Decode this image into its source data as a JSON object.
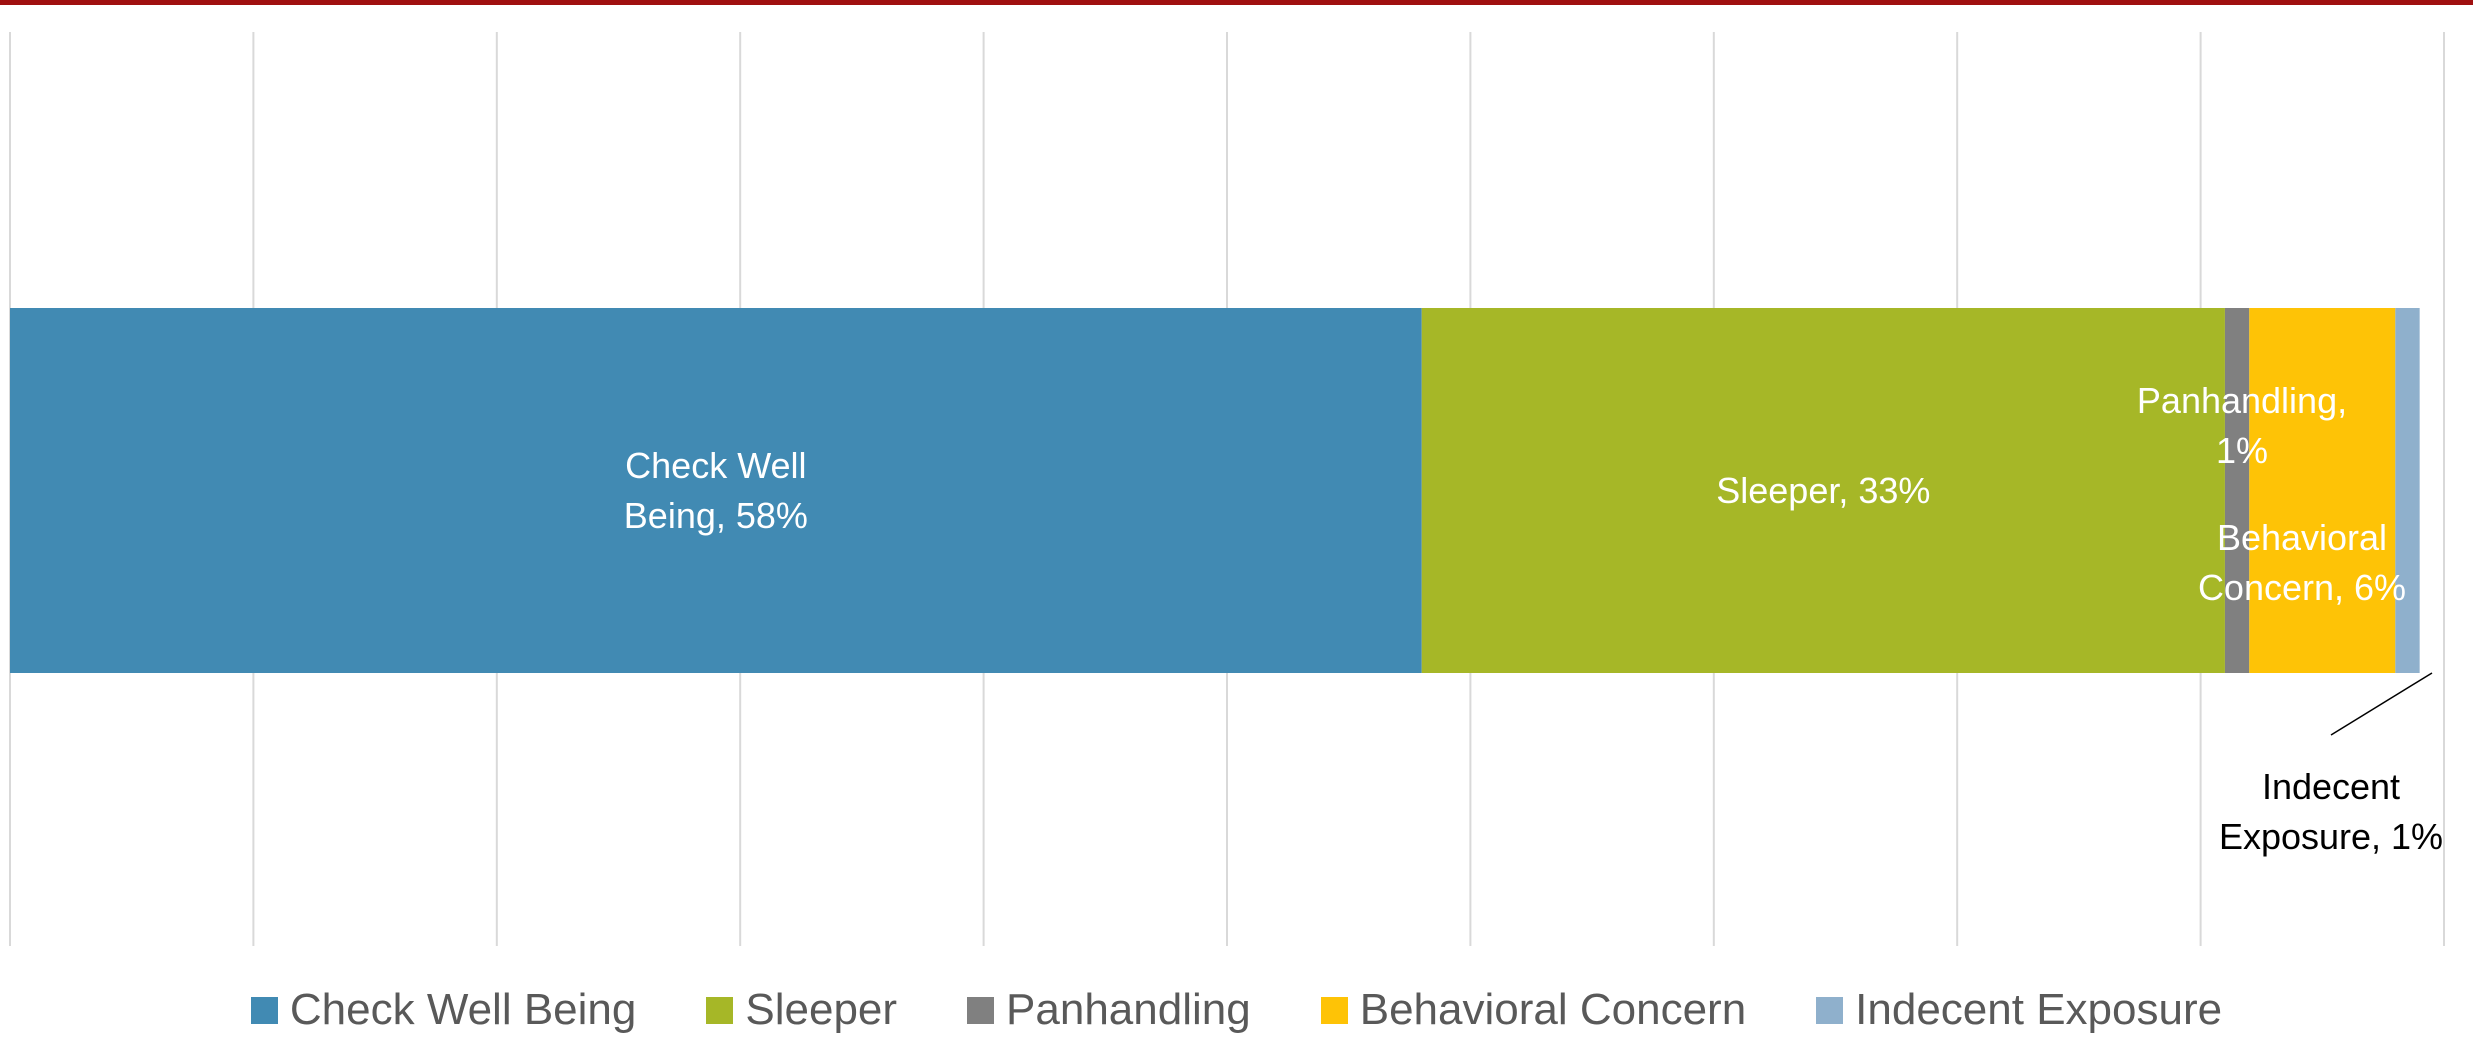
{
  "chart_data": {
    "type": "stacked-bar-horizontal",
    "categories": [
      null
    ],
    "series": [
      {
        "name": "Check Well Being",
        "color": "#418ab3",
        "values": [
          58
        ],
        "value_labels": [
          "Check Well Being, 58%"
        ]
      },
      {
        "name": "Sleeper",
        "color": "#a6b727",
        "values": [
          33
        ],
        "value_labels": [
          "Sleeper, 33%"
        ]
      },
      {
        "name": "Panhandling",
        "color": "#808080",
        "values": [
          1
        ],
        "value_labels": [
          "Panhandling, 1%"
        ]
      },
      {
        "name": "Behavioral Concern",
        "color": "#fec306",
        "values": [
          6
        ],
        "value_labels": [
          "Behavioral Concern, 6%"
        ]
      },
      {
        "name": "Indecent Exposure",
        "color": "#8fb0cc",
        "values": [
          1
        ],
        "value_labels": [
          "Indecent Exposure, 1%"
        ]
      }
    ],
    "xlim": [
      0,
      100
    ],
    "xticks": [
      0,
      10,
      20,
      30,
      40,
      50,
      60,
      70,
      80,
      90,
      100
    ],
    "grid": true,
    "legend": "bottom"
  }
}
